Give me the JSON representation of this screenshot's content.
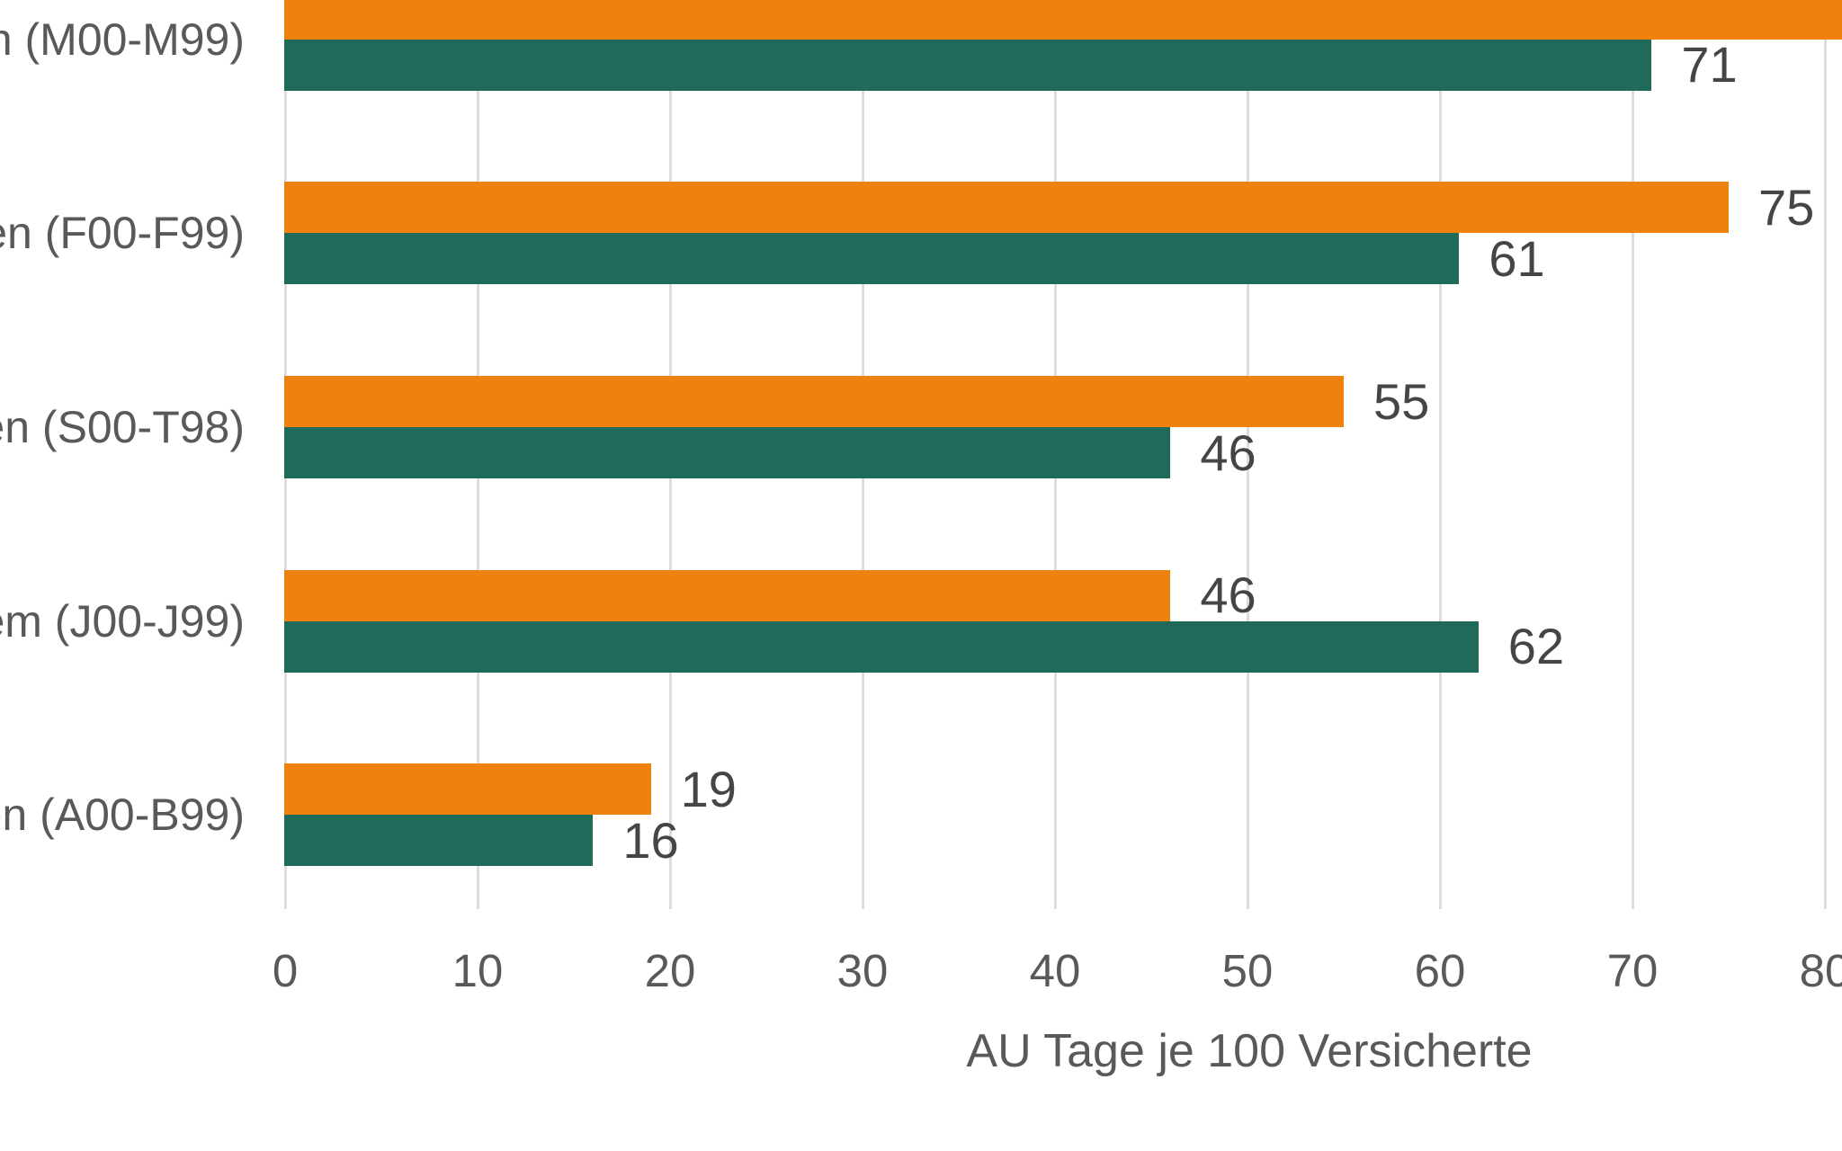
{
  "chart_data": {
    "type": "bar",
    "orientation": "horizontal",
    "title": "",
    "xlabel": "AU Tage je 100 Versicherte",
    "ylabel": "",
    "x_ticks": [
      0,
      10,
      20,
      30,
      40,
      50,
      60,
      70,
      80
    ],
    "xlim_visible": [
      0,
      81
    ],
    "grid": true,
    "categories_visible": [
      "n (M00-M99)",
      "gen (F00-F99)",
      "gen (S00-T98)",
      "tem (J00-J99)",
      "nen (A00-B99)"
    ],
    "categories_note": "category labels are cropped at the left edge of the screenshot; only these fragments are visible",
    "series": [
      {
        "name": "orange",
        "color": "#EE820D",
        "values": [
          null,
          75,
          55,
          46,
          19
        ],
        "value_labels": [
          "",
          "75",
          "55",
          "46",
          "19"
        ],
        "first_bar_note": "first orange bar extends beyond the right edge of the screenshot; its value label is not visible"
      },
      {
        "name": "dark-green",
        "color": "#1F6A59",
        "values": [
          71,
          61,
          46,
          62,
          16
        ],
        "value_labels": [
          "71",
          "61",
          "46",
          "62",
          "16"
        ]
      }
    ]
  },
  "colors": {
    "background": "#FFFFFF",
    "gridline": "#DDDDDD",
    "axis_text": "#595959",
    "value_text": "#454545",
    "bar_orange": "#EE820D",
    "bar_green": "#1F6A59"
  }
}
